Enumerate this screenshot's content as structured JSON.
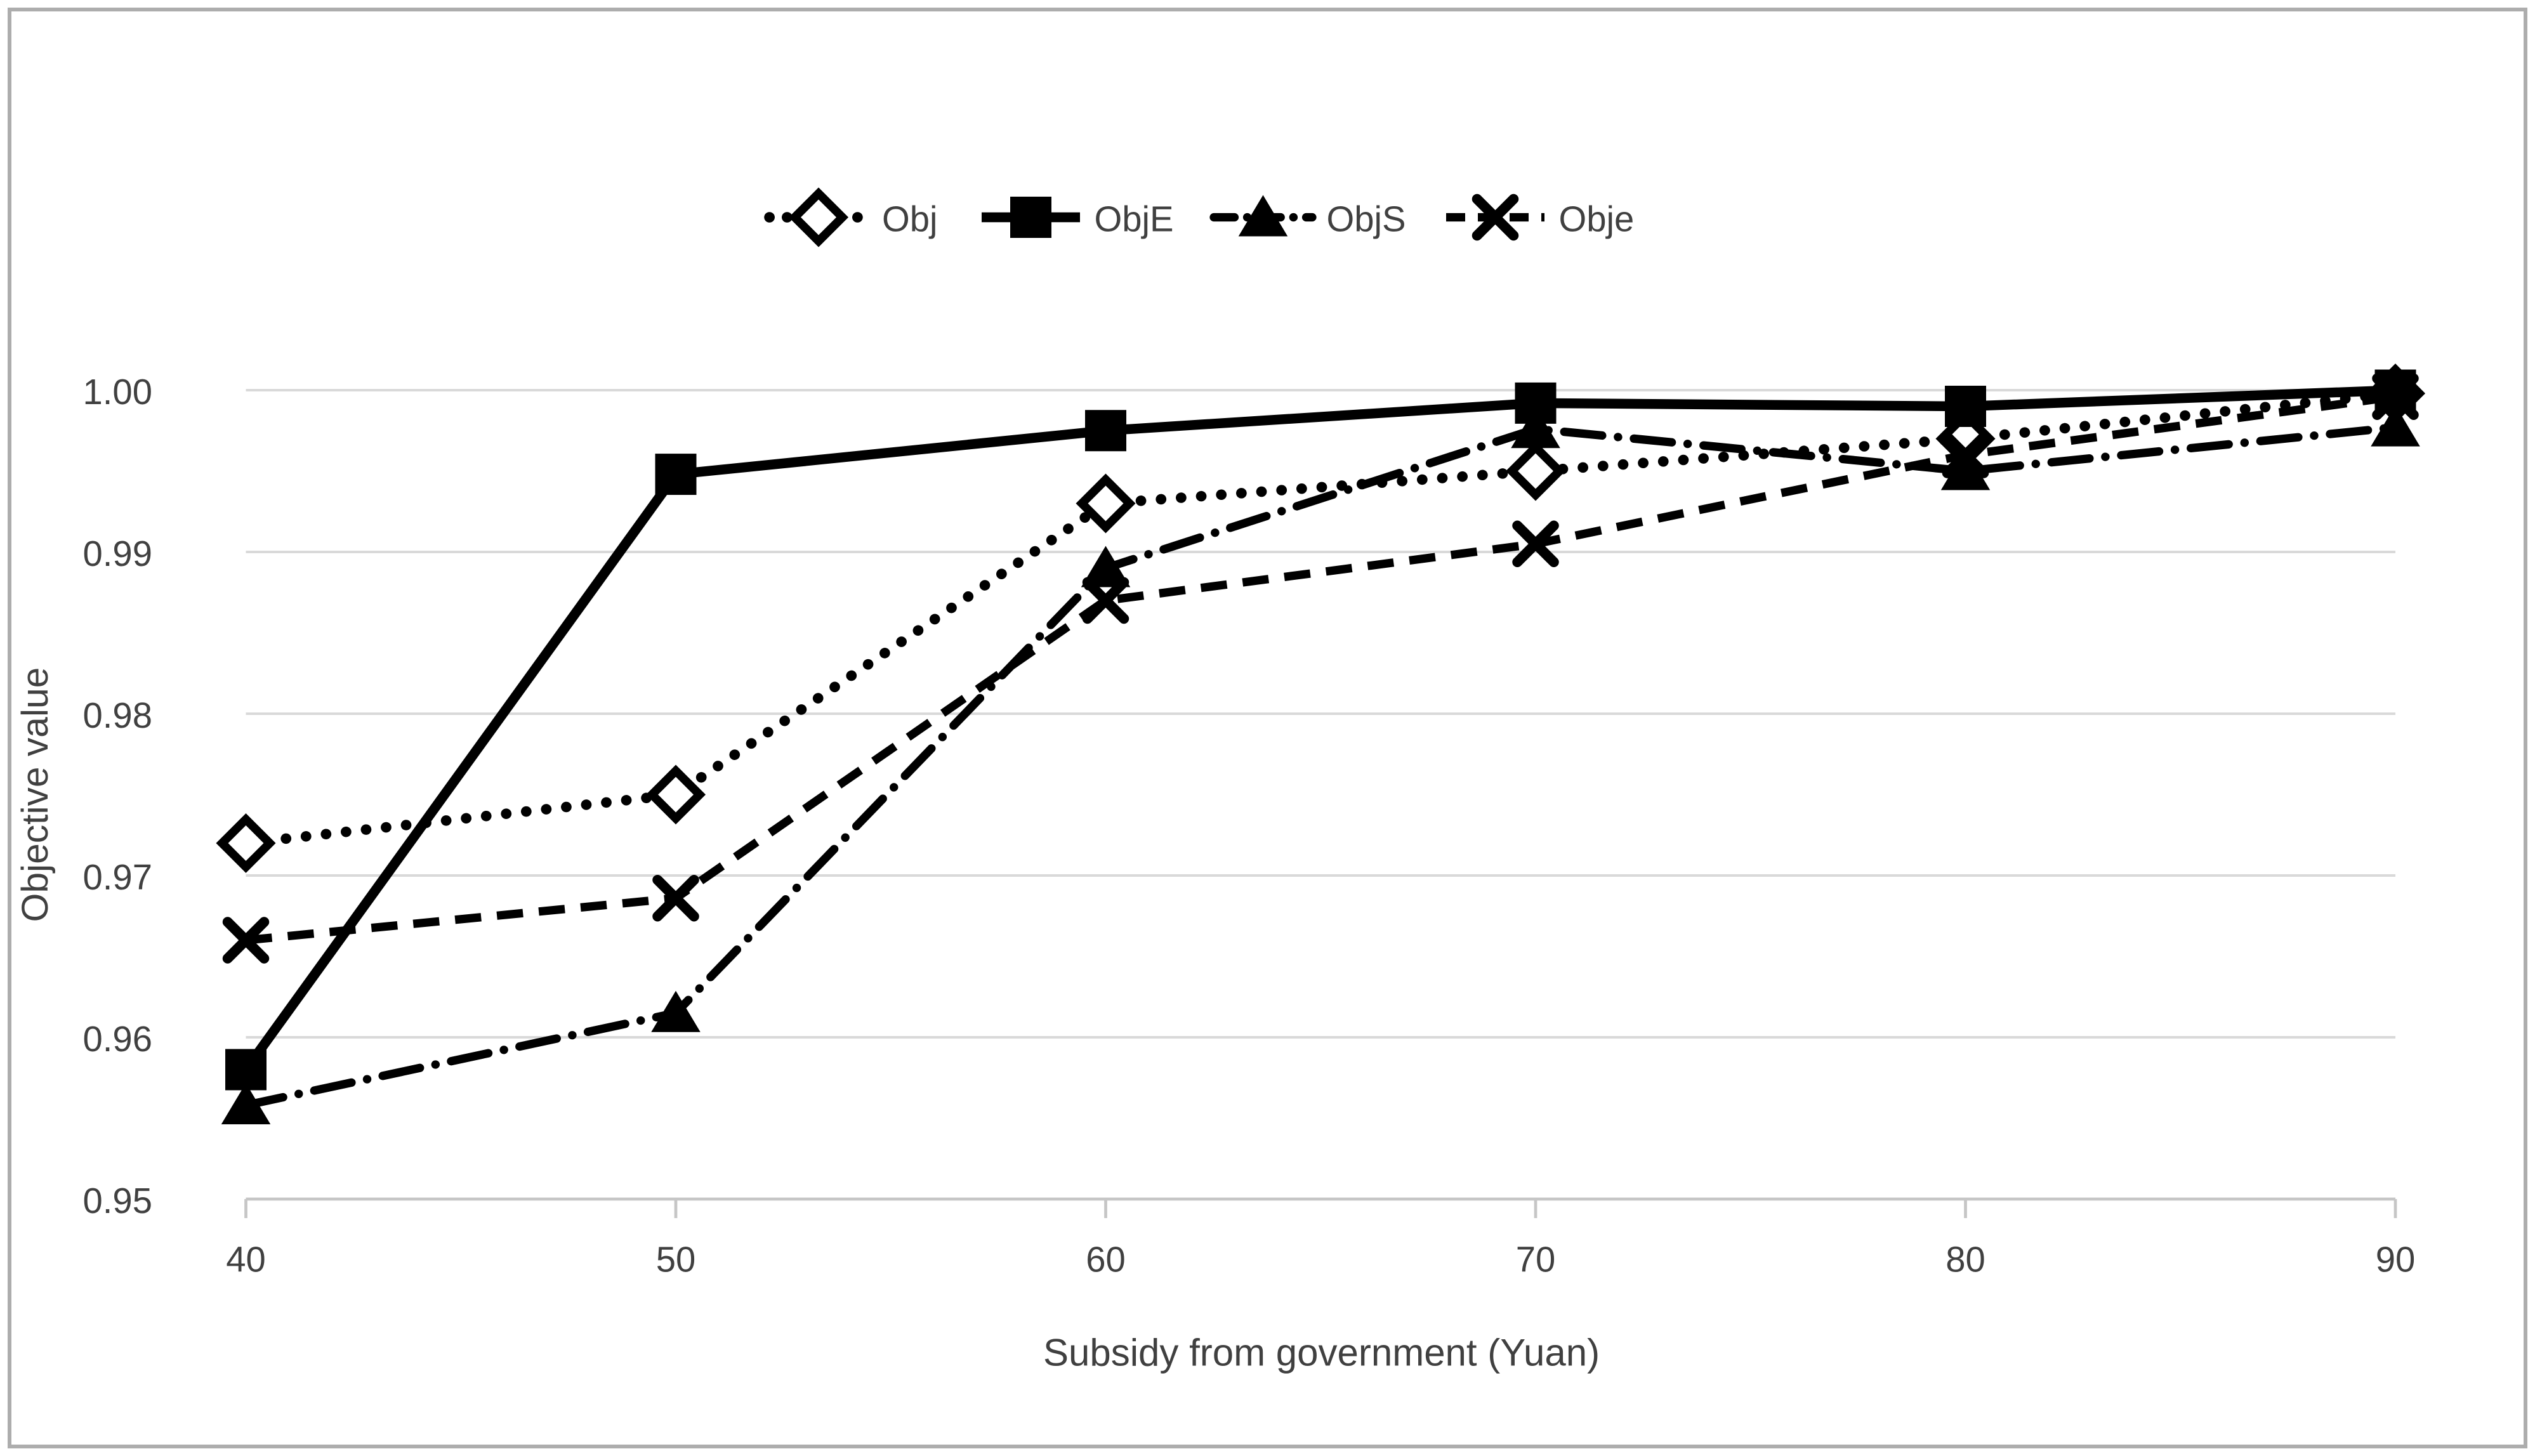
{
  "chart_data": {
    "type": "line",
    "title": "",
    "x": [
      40,
      50,
      60,
      70,
      80,
      90
    ],
    "xtick_labels": [
      "40",
      "50",
      "60",
      "70",
      "80",
      "90"
    ],
    "xlabel": "Subsidy from government (Yuan)",
    "ylabel": "Objective value",
    "ylim": [
      0.95,
      1.0
    ],
    "ytick_step": 0.01,
    "ytick_labels": [
      "0.95",
      "0.96",
      "0.97",
      "0.98",
      "0.99",
      "1.00"
    ],
    "grid": "horizontal-only",
    "legend_position": "top-center",
    "series": [
      {
        "name": "Obj",
        "line_style": "dotted",
        "marker": "open-diamond",
        "color": "#000000",
        "values": [
          0.972,
          0.975,
          0.993,
          0.995,
          0.997,
          0.9998
        ]
      },
      {
        "name": "ObjE",
        "line_style": "solid",
        "marker": "filled-square",
        "color": "#000000",
        "values": [
          0.958,
          0.9948,
          0.9975,
          0.9992,
          0.999,
          1.0
        ]
      },
      {
        "name": "ObjS",
        "line_style": "dash-dot",
        "marker": "filled-triangle",
        "color": "#000000",
        "values": [
          0.9558,
          0.9615,
          0.989,
          0.9976,
          0.995,
          0.9977
        ]
      },
      {
        "name": "Obje",
        "line_style": "dashed",
        "marker": "x-cross",
        "color": "#000000",
        "values": [
          0.966,
          0.9686,
          0.987,
          0.9905,
          0.996,
          0.9996
        ]
      }
    ],
    "colors": {
      "series": "#000000",
      "gridline": "#D9D9D9",
      "axis_line": "#C6C6C6",
      "axis_text": "#404040",
      "border": "#ADADAD",
      "background": "#FFFFFF"
    }
  }
}
